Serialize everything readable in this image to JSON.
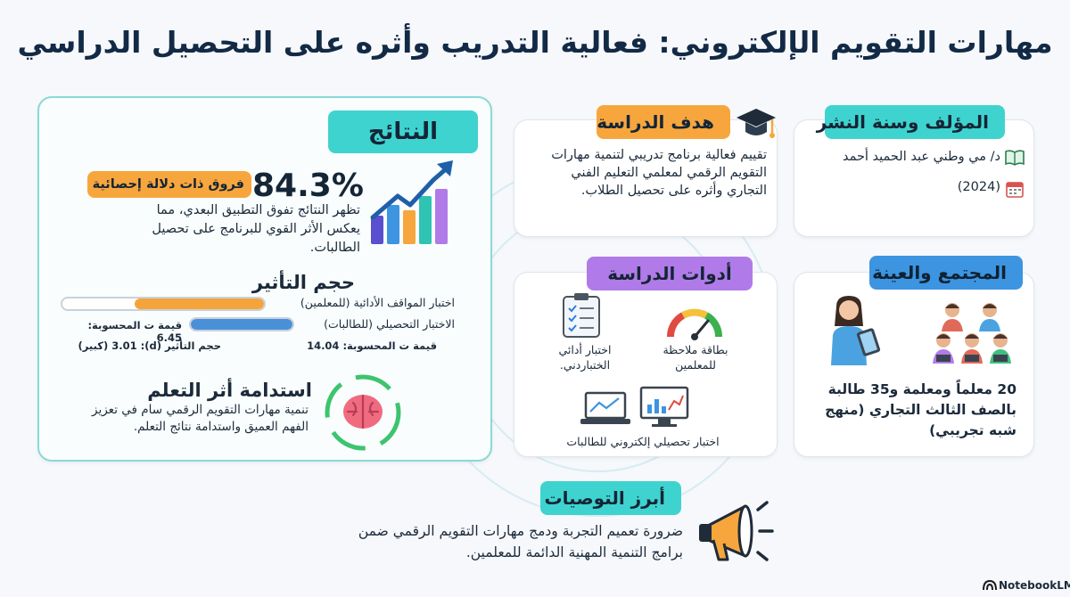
{
  "title": "مهارات التقويم الإلكتروني: فعالية التدريب وأثره على التحصيل الدراسي",
  "results": {
    "heading": "النتائج",
    "big_percent": "84.3%",
    "sig_label": "فروق ذات دلالة إحصائية",
    "sig_text": "تظهر النتائج تفوق التطبيق البعدي، مما يعكس الأثر القوي للبرنامج على تحصيل الطالبات.",
    "effect_heading": "حجم التأثير",
    "effect_bars": [
      {
        "label": "اختبار المواقف الأدائية (للمعلمين)",
        "fill": 0.64,
        "color": "#f5a43c"
      },
      {
        "label": "الاختبار التحصيلي (للطالبات)",
        "fill": 1.0,
        "color": "#4a90d9"
      }
    ],
    "t_value_1": "قيمة ت المحسوبة: 6.45",
    "t_value_2": "قيمة ت المحسوبة: 14.04",
    "effect_size": "حجم التأثير (d): 3.01 (كبير)",
    "sustain_heading": "استدامة أثر التعلم",
    "sustain_text": "تنمية مهارات التقويم الرقمي سام في تعزيز الفهم العميق واستدامة نتائج التعلم."
  },
  "objective": {
    "heading": "هدف الدراسة",
    "text": "تقييم فعالية برنامج تدريبي لتنمية مهارات التقويم الرقمي لمعلمي التعليم الفني التجاري وأثره على تحصيل الطلاب."
  },
  "author": {
    "heading": "المؤلف وسنة النشر",
    "name": "د/ مي وطني عبد الحميد أحمد",
    "year": "(2024)"
  },
  "tools": {
    "heading": "أدوات الدراسة",
    "tool_1": "بطاقة ملاحظة للمعلمين",
    "tool_2": "اختبار أدائي الختباردني.",
    "tool_3": "اختبار تحصيلي إلكتروني للطالبات"
  },
  "population": {
    "heading": "المجتمع والعينة",
    "text": "20 معلماً ومعلمة و35 طالبة بالصف الثالث التجاري (منهج شبه تجريبي)"
  },
  "recommendations": {
    "heading": "أبرز التوصيات",
    "text": "ضرورة تعميم التجربة ودمج مهارات التقويم الرقمي ضمن برامج التنمية المهنية الدائمة للمعلمين."
  },
  "branding": "NotebookLM",
  "colors": {
    "teal": "#3fd3cf",
    "orange": "#f7a63d",
    "purple": "#b07be8",
    "blue": "#3d94e0",
    "navy": "#122a45"
  }
}
